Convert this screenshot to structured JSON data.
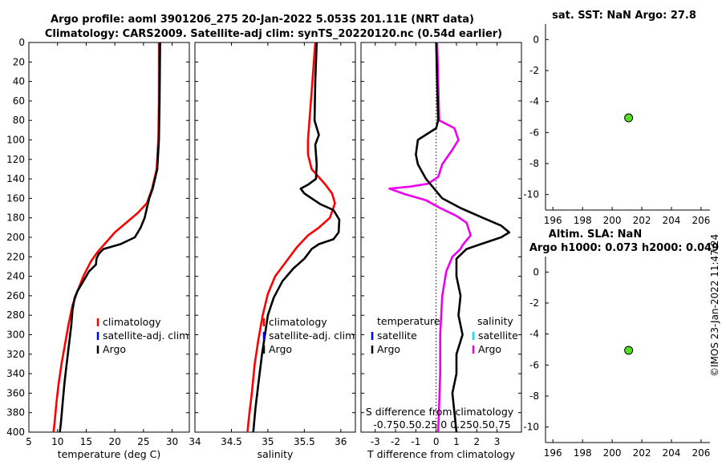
{
  "title_line1": "Argo profile: aoml 3901206_275 20-Jan-2022 5.053S 201.11E (NRT data)",
  "title_line2": "Climatology: CARS2009. Satellite-adj clim: synTS_20220120.nc (0.54d earlier)",
  "credit": "©IMOS 23-Jan-2022 11:47:24",
  "colors": {
    "climatology": "#ff0000",
    "satellite": "#0000ff",
    "satellite_s": "#00e5ee",
    "argo": "#000000",
    "argo_s": "#ee00ee",
    "marker": "#55dd22"
  },
  "chart_data": [
    {
      "type": "line",
      "id": "temperature",
      "xlabel": "temperature (deg C)",
      "xlim": [
        5,
        33
      ],
      "xticks": [
        "5",
        "10",
        "15",
        "20",
        "25",
        "30"
      ],
      "ylim": [
        0,
        400
      ],
      "yticks": [
        "0",
        "20",
        "40",
        "60",
        "80",
        "100",
        "120",
        "140",
        "160",
        "180",
        "200",
        "220",
        "240",
        "260",
        "280",
        "300",
        "320",
        "340",
        "360",
        "380",
        "400"
      ],
      "legend": [
        "climatology",
        "satellite-adj. clim",
        "Argo"
      ],
      "series": [
        {
          "name": "climatology",
          "color": "#ff0000",
          "points": [
            [
              27.7,
              0
            ],
            [
              27.7,
              60
            ],
            [
              27.6,
              100
            ],
            [
              27.3,
              130
            ],
            [
              26.5,
              150
            ],
            [
              25.6,
              165
            ],
            [
              24,
              175
            ],
            [
              22,
              185
            ],
            [
              20,
              195
            ],
            [
              18.5,
              205
            ],
            [
              17,
              215
            ],
            [
              15.8,
              225
            ],
            [
              14.5,
              240
            ],
            [
              13.5,
              255
            ],
            [
              12.6,
              270
            ],
            [
              11.9,
              290
            ],
            [
              11.3,
              310
            ],
            [
              10.7,
              330
            ],
            [
              10.2,
              350
            ],
            [
              9.8,
              370
            ],
            [
              9.5,
              390
            ],
            [
              9.3,
              400
            ]
          ]
        },
        {
          "name": "Argo",
          "color": "#000000",
          "points": [
            [
              27.9,
              0
            ],
            [
              27.8,
              60
            ],
            [
              27.7,
              100
            ],
            [
              27.4,
              130
            ],
            [
              26.6,
              150
            ],
            [
              26,
              160
            ],
            [
              25.6,
              170
            ],
            [
              25.2,
              180
            ],
            [
              24.5,
              190
            ],
            [
              23.5,
              200
            ],
            [
              21,
              207
            ],
            [
              18,
              212
            ],
            [
              17.2,
              217
            ],
            [
              16.8,
              222
            ],
            [
              16.7,
              228
            ],
            [
              15.5,
              235
            ],
            [
              14.5,
              245
            ],
            [
              13.5,
              255
            ],
            [
              13,
              262
            ],
            [
              12.6,
              275
            ],
            [
              12.4,
              290
            ],
            [
              12,
              310
            ],
            [
              11.6,
              330
            ],
            [
              11.2,
              350
            ],
            [
              10.9,
              370
            ],
            [
              10.6,
              390
            ],
            [
              10.4,
              400
            ]
          ]
        }
      ]
    },
    {
      "type": "line",
      "id": "salinity",
      "xlabel": "salinity",
      "xlim": [
        34,
        36.2
      ],
      "xticks": [
        "34",
        "34.5",
        "35",
        "35.5",
        "36"
      ],
      "ylim": [
        0,
        400
      ],
      "legend": [
        "climatology",
        "satellite-adj. clim",
        "Argo"
      ],
      "series": [
        {
          "name": "climatology",
          "color": "#ff0000",
          "points": [
            [
              35.65,
              0
            ],
            [
              35.6,
              50
            ],
            [
              35.55,
              100
            ],
            [
              35.55,
              115
            ],
            [
              35.6,
              130
            ],
            [
              35.78,
              145
            ],
            [
              35.88,
              155
            ],
            [
              35.92,
              165
            ],
            [
              35.85,
              180
            ],
            [
              35.7,
              190
            ],
            [
              35.55,
              198
            ],
            [
              35.4,
              210
            ],
            [
              35.25,
              225
            ],
            [
              35.1,
              240
            ],
            [
              35,
              258
            ],
            [
              34.93,
              280
            ],
            [
              34.87,
              305
            ],
            [
              34.82,
              330
            ],
            [
              34.78,
              360
            ],
            [
              34.74,
              385
            ],
            [
              34.72,
              400
            ]
          ]
        },
        {
          "name": "Argo",
          "color": "#000000",
          "points": [
            [
              35.67,
              0
            ],
            [
              35.65,
              40
            ],
            [
              35.64,
              80
            ],
            [
              35.7,
              95
            ],
            [
              35.65,
              105
            ],
            [
              35.67,
              125
            ],
            [
              35.66,
              140
            ],
            [
              35.55,
              146
            ],
            [
              35.45,
              150
            ],
            [
              35.5,
              155
            ],
            [
              35.6,
              160
            ],
            [
              35.72,
              166
            ],
            [
              35.9,
              172
            ],
            [
              35.98,
              182
            ],
            [
              35.97,
              195
            ],
            [
              35.9,
              202
            ],
            [
              35.7,
              207
            ],
            [
              35.6,
              212
            ],
            [
              35.5,
              222
            ],
            [
              35.35,
              232
            ],
            [
              35.2,
              245
            ],
            [
              35.08,
              262
            ],
            [
              35,
              280
            ],
            [
              34.96,
              300
            ],
            [
              34.92,
              320
            ],
            [
              34.87,
              350
            ],
            [
              34.83,
              375
            ],
            [
              34.8,
              400
            ]
          ]
        }
      ]
    },
    {
      "type": "line",
      "id": "difference",
      "xlabel": "T difference from climatology",
      "top_label": "S difference from climatology",
      "top_ticks": "-0.750.50.25 0 0.250.50.75",
      "xlim": [
        -3.7,
        4.2
      ],
      "xticks": [
        "-3",
        "-2",
        "-1",
        "0",
        "1",
        "2",
        "3"
      ],
      "ylim": [
        0,
        400
      ],
      "legend_left_title": "temperature",
      "legend_right_title": "salinity",
      "legend_left": [
        "satellite",
        "Argo"
      ],
      "legend_right": [
        "satellite",
        "Argo"
      ],
      "series": [
        {
          "name": "Argo S diff",
          "color": "#ee00ee",
          "points": [
            [
              0.05,
              0
            ],
            [
              0.1,
              40
            ],
            [
              0.15,
              80
            ],
            [
              0.9,
              88
            ],
            [
              1.1,
              100
            ],
            [
              0.8,
              110
            ],
            [
              0.3,
              125
            ],
            [
              0.1,
              138
            ],
            [
              -0.4,
              145
            ],
            [
              -1.3,
              148
            ],
            [
              -2.3,
              150
            ],
            [
              -1.5,
              156
            ],
            [
              -0.5,
              162
            ],
            [
              0.2,
              170
            ],
            [
              1,
              178
            ],
            [
              1.5,
              185
            ],
            [
              1.7,
              198
            ],
            [
              1.3,
              208
            ],
            [
              1.2,
              212
            ],
            [
              0.8,
              220
            ],
            [
              0.5,
              235
            ],
            [
              0.3,
              260
            ],
            [
              0.2,
              300
            ],
            [
              0.2,
              340
            ],
            [
              0.15,
              370
            ],
            [
              0.1,
              400
            ]
          ]
        },
        {
          "name": "Argo T diff",
          "color": "#000000",
          "points": [
            [
              0,
              0
            ],
            [
              0.05,
              40
            ],
            [
              0.1,
              80
            ],
            [
              0,
              88
            ],
            [
              -0.9,
              100
            ],
            [
              -1,
              115
            ],
            [
              -0.9,
              125
            ],
            [
              -0.5,
              140
            ],
            [
              0.3,
              160
            ],
            [
              1.2,
              170
            ],
            [
              2.3,
              180
            ],
            [
              3.2,
              188
            ],
            [
              3.6,
              195
            ],
            [
              3.2,
              200
            ],
            [
              2.2,
              207
            ],
            [
              1.5,
              212
            ],
            [
              1,
              222
            ],
            [
              1,
              240
            ],
            [
              1.2,
              260
            ],
            [
              1.1,
              280
            ],
            [
              1.3,
              300
            ],
            [
              1,
              320
            ],
            [
              1,
              340
            ],
            [
              0.8,
              360
            ],
            [
              0.9,
              380
            ],
            [
              1,
              400
            ]
          ]
        }
      ]
    },
    {
      "type": "scatter",
      "id": "sst-map",
      "title": "sat. SST: NaN Argo: 27.8",
      "xlim": [
        195.5,
        206.6
      ],
      "ylim": [
        -11,
        1
      ],
      "xticks": [
        "196",
        "198",
        "200",
        "202",
        "204",
        "206"
      ],
      "yticks": [
        "0",
        "-2",
        "-4",
        "-6",
        "-8",
        "-10"
      ],
      "points": [
        [
          201.11,
          -5.053
        ]
      ]
    },
    {
      "type": "scatter",
      "id": "sla-map",
      "title": "Altim. SLA: NaN",
      "subtitle": "Argo h1000: 0.073 h2000: 0.049",
      "xlim": [
        195.5,
        206.6
      ],
      "ylim": [
        -11,
        1
      ],
      "xticks": [
        "196",
        "198",
        "200",
        "202",
        "204",
        "206"
      ],
      "yticks": [
        "0",
        "-2",
        "-4",
        "-6",
        "-8",
        "-10"
      ],
      "points": [
        [
          201.11,
          -5.053
        ]
      ]
    }
  ]
}
